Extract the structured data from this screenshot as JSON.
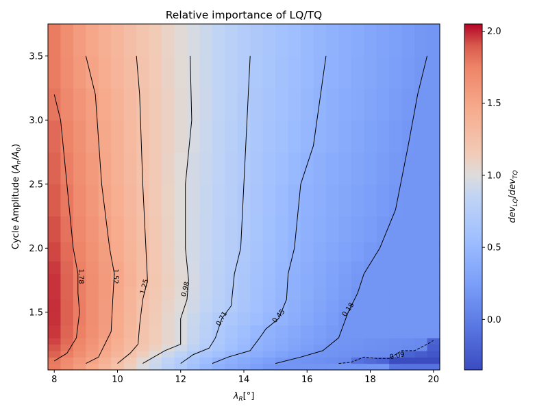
{
  "chart_data": {
    "type": "heatmap",
    "title": "Relative importance of LQ/TQ",
    "xlabel_main": "λ",
    "xlabel_sub": "R",
    "xlabel_unit": "[°]",
    "ylabel_main": "Cycle Amplitude (",
    "ylabel_a": "A",
    "ylabel_n": "n",
    "ylabel_slash": "/",
    "ylabel_zero": "0",
    "ylabel_close": ")",
    "colorbar_label_dev1": "dev",
    "colorbar_label_sub1": "LQ",
    "colorbar_label_slash": "/",
    "colorbar_label_dev2": "dev",
    "colorbar_label_sub2": "TQ",
    "xlim": [
      7.8,
      20.2
    ],
    "ylim": [
      1.05,
      3.75
    ],
    "x_ticks": [
      8,
      10,
      12,
      14,
      16,
      18,
      20
    ],
    "x_tick_labels": [
      "8",
      "10",
      "12",
      "14",
      "16",
      "18",
      "20"
    ],
    "y_ticks": [
      1.5,
      2.0,
      2.5,
      3.0,
      3.5
    ],
    "y_tick_labels": [
      "1.5",
      "2.0",
      "2.5",
      "3.0",
      "3.5"
    ],
    "colorbar_range": [
      -0.35,
      2.05
    ],
    "colorbar_ticks": [
      0.0,
      0.5,
      1.0,
      1.5,
      2.0
    ],
    "colorbar_tick_labels": [
      "0.0",
      "0.5",
      "1.0",
      "1.5",
      "2.0"
    ],
    "colormap": "coolwarm",
    "grid_x_edges": [
      7.8,
      8.2,
      8.6,
      9.0,
      9.4,
      9.8,
      10.2,
      10.6,
      11.0,
      11.4,
      11.8,
      12.2,
      12.6,
      13.0,
      13.4,
      13.8,
      14.2,
      14.6,
      15.0,
      15.4,
      15.8,
      16.2,
      16.6,
      17.0,
      17.4,
      17.8,
      18.2,
      18.6,
      19.0,
      19.4,
      19.8,
      20.2
    ],
    "grid_y_edges": [
      1.05,
      1.1,
      1.15,
      1.2,
      1.25,
      1.3,
      1.4,
      1.5,
      1.6,
      1.7,
      1.8,
      1.9,
      2.05,
      2.25,
      2.5,
      2.75,
      3.0,
      3.25,
      3.5,
      3.75
    ],
    "contours": [
      {
        "level": 1.78,
        "label": "1.78",
        "dashed": false,
        "points": [
          [
            8.0,
            3.2
          ],
          [
            8.2,
            3.0
          ],
          [
            8.4,
            2.5
          ],
          [
            8.6,
            2.0
          ],
          [
            8.75,
            1.8
          ],
          [
            8.75,
            1.65
          ],
          [
            8.8,
            1.5
          ],
          [
            8.7,
            1.3
          ],
          [
            8.4,
            1.18
          ],
          [
            8.0,
            1.12
          ]
        ],
        "label_at": [
          8.85,
          1.78
        ],
        "label_angle": 90
      },
      {
        "level": 1.52,
        "label": "1.52",
        "dashed": false,
        "points": [
          [
            9.0,
            3.5
          ],
          [
            9.3,
            3.2
          ],
          [
            9.5,
            2.5
          ],
          [
            9.75,
            2.0
          ],
          [
            9.9,
            1.8
          ],
          [
            9.85,
            1.6
          ],
          [
            9.8,
            1.35
          ],
          [
            9.6,
            1.25
          ],
          [
            9.4,
            1.15
          ],
          [
            9.0,
            1.1
          ]
        ],
        "label_at": [
          9.95,
          1.78
        ],
        "label_angle": 90
      },
      {
        "level": 1.25,
        "label": "1.25",
        "dashed": false,
        "points": [
          [
            10.6,
            3.5
          ],
          [
            10.7,
            3.2
          ],
          [
            10.8,
            2.5
          ],
          [
            10.9,
            2.0
          ],
          [
            10.95,
            1.75
          ],
          [
            10.8,
            1.6
          ],
          [
            10.7,
            1.4
          ],
          [
            10.65,
            1.25
          ],
          [
            10.4,
            1.18
          ],
          [
            10.0,
            1.1
          ]
        ],
        "label_at": [
          10.85,
          1.7
        ],
        "label_angle": -75
      },
      {
        "level": 0.98,
        "label": "0.98",
        "dashed": false,
        "points": [
          [
            12.3,
            3.5
          ],
          [
            12.35,
            3.0
          ],
          [
            12.15,
            2.5
          ],
          [
            12.15,
            2.0
          ],
          [
            12.25,
            1.75
          ],
          [
            12.2,
            1.6
          ],
          [
            12.0,
            1.45
          ],
          [
            12.0,
            1.25
          ],
          [
            11.5,
            1.2
          ],
          [
            10.8,
            1.1
          ]
        ],
        "label_at": [
          12.15,
          1.68
        ],
        "label_angle": -75
      },
      {
        "level": 0.71,
        "label": "0.71",
        "dashed": false,
        "points": [
          [
            14.2,
            3.5
          ],
          [
            14.0,
            2.5
          ],
          [
            13.9,
            2.0
          ],
          [
            13.7,
            1.8
          ],
          [
            13.6,
            1.55
          ],
          [
            13.3,
            1.45
          ],
          [
            13.1,
            1.3
          ],
          [
            12.9,
            1.22
          ],
          [
            12.4,
            1.17
          ],
          [
            12.0,
            1.1
          ]
        ],
        "label_at": [
          13.3,
          1.45
        ],
        "label_angle": -60
      },
      {
        "level": 0.45,
        "label": "0.45",
        "dashed": false,
        "points": [
          [
            16.6,
            3.5
          ],
          [
            16.2,
            2.8
          ],
          [
            15.8,
            2.5
          ],
          [
            15.6,
            2.0
          ],
          [
            15.4,
            1.8
          ],
          [
            15.35,
            1.6
          ],
          [
            15.1,
            1.45
          ],
          [
            14.7,
            1.37
          ],
          [
            14.5,
            1.3
          ],
          [
            14.2,
            1.2
          ],
          [
            13.5,
            1.15
          ],
          [
            13.0,
            1.1
          ]
        ],
        "label_at": [
          15.1,
          1.47
        ],
        "label_angle": -50
      },
      {
        "level": 0.18,
        "label": "0.18",
        "dashed": false,
        "points": [
          [
            19.8,
            3.5
          ],
          [
            19.5,
            3.2
          ],
          [
            19.2,
            2.8
          ],
          [
            18.8,
            2.3
          ],
          [
            18.3,
            2.0
          ],
          [
            17.8,
            1.8
          ],
          [
            17.6,
            1.65
          ],
          [
            17.3,
            1.5
          ],
          [
            17.0,
            1.3
          ],
          [
            16.5,
            1.2
          ],
          [
            15.8,
            1.15
          ],
          [
            15.0,
            1.1
          ]
        ],
        "label_at": [
          17.3,
          1.52
        ],
        "label_angle": -55
      },
      {
        "level": 0.09,
        "label": "0.09",
        "dashed": true,
        "points": [
          [
            17.0,
            1.1
          ],
          [
            17.4,
            1.11
          ],
          [
            17.8,
            1.15
          ],
          [
            18.2,
            1.14
          ],
          [
            18.6,
            1.14
          ],
          [
            19.0,
            1.2
          ],
          [
            19.4,
            1.2
          ],
          [
            19.8,
            1.25
          ],
          [
            20.0,
            1.28
          ]
        ],
        "label_at": [
          18.85,
          1.16
        ],
        "label_angle": -12
      }
    ]
  }
}
